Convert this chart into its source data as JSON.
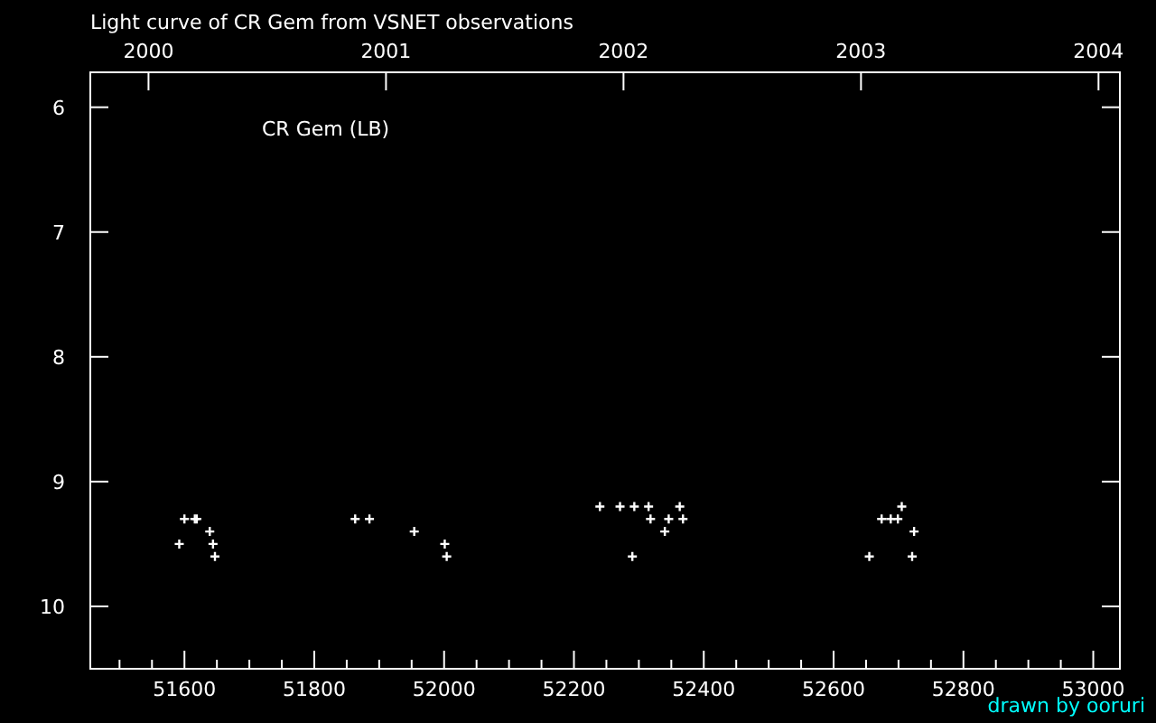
{
  "chart_data": {
    "type": "scatter",
    "title": "Light curve of CR Gem from  VSNET  observations",
    "annotations": [
      "CR Gem (LB)",
      "drawn by ooruri"
    ],
    "x": [
      51592,
      51600,
      51616,
      51619,
      51639,
      51644,
      51647,
      51863,
      51885,
      51954,
      52001,
      52004,
      52240,
      52271,
      52293,
      52290,
      52315,
      52318,
      52340,
      52346,
      52363,
      52368,
      52655,
      52674,
      52688,
      52699,
      52705,
      52724,
      52721
    ],
    "values": [
      9.5,
      9.3,
      9.3,
      9.3,
      9.4,
      9.5,
      9.6,
      9.3,
      9.3,
      9.4,
      9.5,
      9.6,
      9.2,
      9.2,
      9.2,
      9.6,
      9.2,
      9.3,
      9.4,
      9.3,
      9.2,
      9.3,
      9.6,
      9.3,
      9.3,
      9.3,
      9.2,
      9.4,
      9.6
    ],
    "color": "#ffffff",
    "marker": "cross",
    "grid": false,
    "xlim": [
      51455,
      53041
    ],
    "xticks": [
      {
        "value": 51500,
        "label": null
      },
      {
        "value": 51550,
        "label": null
      },
      51600,
      {
        "value": 51650,
        "label": null
      },
      {
        "value": 51700,
        "label": null
      },
      {
        "value": 51750,
        "label": null
      },
      51800,
      {
        "value": 51850,
        "label": null
      },
      {
        "value": 51900,
        "label": null
      },
      {
        "value": 51950,
        "label": null
      },
      52000,
      {
        "value": 52050,
        "label": null
      },
      {
        "value": 52100,
        "label": null
      },
      {
        "value": 52150,
        "label": null
      },
      52200,
      {
        "value": 52250,
        "label": null
      },
      {
        "value": 52300,
        "label": null
      },
      {
        "value": 52350,
        "label": null
      },
      52400,
      {
        "value": 52450,
        "label": null
      },
      {
        "value": 52500,
        "label": null
      },
      {
        "value": 52550,
        "label": null
      },
      52600,
      {
        "value": 52650,
        "label": null
      },
      {
        "value": 52700,
        "label": null
      },
      {
        "value": 52750,
        "label": null
      },
      52800,
      {
        "value": 52850,
        "label": null
      },
      {
        "value": 52900,
        "label": null
      },
      {
        "value": 52950,
        "label": null
      },
      53000
    ],
    "x2lim": [
      1999.755,
      2004.09
    ],
    "x2ticks": [
      2000,
      2001,
      2002,
      2003,
      2004
    ],
    "ylim": [
      10.5,
      5.72
    ],
    "yticks": [
      6,
      7,
      8,
      9,
      10
    ]
  }
}
